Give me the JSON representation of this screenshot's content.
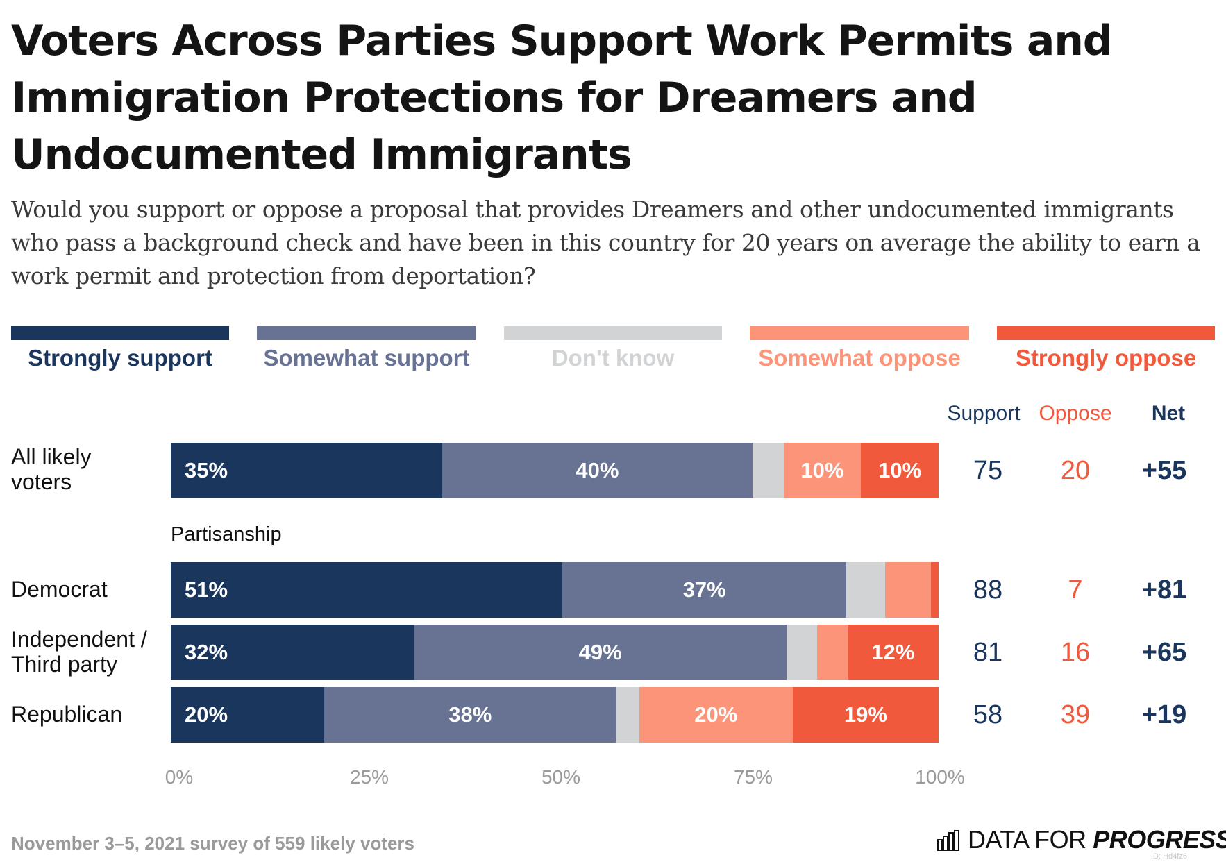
{
  "chart_data": {
    "type": "bar",
    "title": "Voters Across Parties Support Work Permits and Immigration Protections for Dreamers and Undocumented Immigrants",
    "subtitle": "Would you support or oppose a proposal that provides Dreamers and other undocumented immigrants who pass a background check and have been in this country for 20 years on average the ability to earn a work permit and protection from deportation?",
    "orientation": "horizontal",
    "stacked": true,
    "xlim": [
      0,
      100
    ],
    "x_ticks": [
      "0%",
      "25%",
      "50%",
      "75%",
      "100%"
    ],
    "legend_placement": "top",
    "section_label": "Partisanship",
    "categories": [
      "All likely voters",
      "Democrat",
      "Independent / Third party",
      "Republican"
    ],
    "series": [
      {
        "name": "Strongly support",
        "color": "#1b365d",
        "values": [
          35,
          51,
          32,
          20
        ],
        "labels": [
          "35%",
          "51%",
          "32%",
          "20%"
        ]
      },
      {
        "name": "Somewhat support",
        "color": "#687394",
        "values": [
          40,
          37,
          49,
          38
        ],
        "labels": [
          "40%",
          "37%",
          "49%",
          "38%"
        ]
      },
      {
        "name": "Don't know",
        "color": "#d2d3d5",
        "values": [
          4,
          5,
          4,
          3
        ],
        "labels": [
          "",
          "",
          "",
          ""
        ]
      },
      {
        "name": "Somewhat oppose",
        "color": "#fc9479",
        "values": [
          10,
          6,
          4,
          20
        ],
        "labels": [
          "10%",
          "",
          "",
          "20%"
        ]
      },
      {
        "name": "Strongly oppose",
        "color": "#f1593d",
        "values": [
          10,
          1,
          12,
          19
        ],
        "labels": [
          "10%",
          "",
          "12%",
          "19%"
        ]
      }
    ],
    "summary_columns": {
      "headers": {
        "support": "Support",
        "oppose": "Oppose",
        "net": "Net"
      },
      "support": [
        "75",
        "88",
        "81",
        "58"
      ],
      "oppose": [
        "20",
        "7",
        "16",
        "39"
      ],
      "net": [
        "+55",
        "+81",
        "+65",
        "+19"
      ]
    }
  },
  "footer": {
    "note": "November 3–5, 2021 survey of 559 likely voters",
    "brand_part1": "DATA FOR ",
    "brand_part2": "PROGRESS",
    "chart_id": "ID: Hd4fz6"
  },
  "colors": {
    "support_text": "#1b365d",
    "oppose_text": "#f1593d",
    "dont_know_text": "#d2d3d5"
  }
}
